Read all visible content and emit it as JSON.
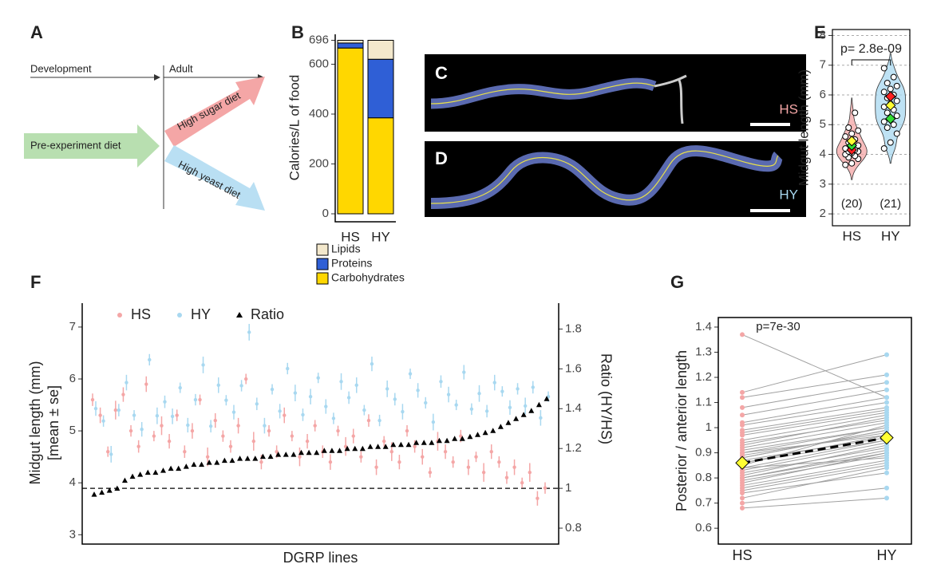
{
  "figure": {
    "panel_a": {
      "label": "A",
      "development": "Development",
      "adult": "Adult",
      "pre": "Pre-experiment diet",
      "sugar": "High sugar diet",
      "yeast": "High yeast diet"
    },
    "panel_c": {
      "label": "C",
      "diet": "HS"
    },
    "panel_d": {
      "label": "D",
      "diet": "HY"
    }
  },
  "chart_data": [
    {
      "type": "bar",
      "panel": "B",
      "ylabel": "Calories/L of food",
      "stacked": true,
      "categories": [
        "HS",
        "HY"
      ],
      "series": [
        {
          "name": "Carbohydrates",
          "color": "#ffd700",
          "values": [
            665,
            385
          ]
        },
        {
          "name": "Proteins",
          "color": "#2f5fd6",
          "values": [
            20,
            235
          ]
        },
        {
          "name": "Lipids",
          "color": "#f3e8cc",
          "values": [
            11,
            76
          ]
        }
      ],
      "ylim": [
        -32,
        720
      ],
      "yticks": [
        0,
        200,
        400,
        600,
        696
      ]
    },
    {
      "type": "violin",
      "panel": "E",
      "ylabel": "Midgut length (mm)",
      "annotation": "p= 2.8e-09",
      "categories": [
        "HS",
        "HY"
      ],
      "n_labels": [
        "(20)",
        "(21)"
      ],
      "groups": [
        {
          "color": "#f4a6a6",
          "values": [
            3.65,
            3.7,
            3.85,
            3.9,
            3.95,
            4.0,
            4.05,
            4.1,
            4.1,
            4.15,
            4.2,
            4.25,
            4.3,
            4.4,
            4.5,
            4.6,
            4.7,
            4.8,
            4.9,
            5.4
          ]
        },
        {
          "color": "#a8d8f0",
          "values": [
            4.2,
            4.4,
            4.7,
            4.9,
            5.0,
            5.1,
            5.2,
            5.3,
            5.4,
            5.5,
            5.6,
            5.7,
            5.8,
            5.9,
            6.0,
            6.1,
            6.2,
            6.3,
            6.4,
            6.6,
            6.9
          ]
        }
      ],
      "markers": [
        {
          "group": 0,
          "color": "#ff2020",
          "value": 4.15
        },
        {
          "group": 0,
          "color": "#33dd33",
          "value": 4.3
        },
        {
          "group": 0,
          "color": "#ffff33",
          "value": 4.45
        },
        {
          "group": 1,
          "color": "#33dd33",
          "value": 5.2
        },
        {
          "group": 1,
          "color": "#ffff33",
          "value": 5.65
        },
        {
          "group": 1,
          "color": "#ff2020",
          "value": 5.95
        }
      ],
      "ylim": [
        1.6,
        8.2
      ],
      "yticks": [
        2,
        3,
        4,
        5,
        6,
        7,
        8
      ],
      "grid": true
    },
    {
      "type": "errorbar",
      "panel": "F",
      "xlabel": "DGRP lines",
      "ylabel": "Midgut length (mm)",
      "ylabel2": "[mean ± se]",
      "y2label": "Ratio (HY/HS)",
      "series": [
        {
          "name": "HS",
          "color": "#f4a6a6",
          "values": [
            5.6,
            5.3,
            4.6,
            5.4,
            5.7,
            5.0,
            4.7,
            5.9,
            4.9,
            5.1,
            4.8,
            5.3,
            4.6,
            5.0,
            5.6,
            4.5,
            5.2,
            4.9,
            4.7,
            5.1,
            6.0,
            4.8,
            4.4,
            5.0,
            4.6,
            5.3,
            4.9,
            4.5,
            4.8,
            5.1,
            4.6,
            4.4,
            5.0,
            4.7,
            4.9,
            4.5,
            5.2,
            4.3,
            4.8,
            4.6,
            4.4,
            5.0,
            4.7,
            4.5,
            4.2,
            4.8,
            4.6,
            4.4,
            4.9,
            4.3,
            4.5,
            4.2,
            4.6,
            4.4,
            4.1,
            4.3,
            4.0,
            4.2,
            3.7,
            3.9
          ],
          "errors": [
            0.12,
            0.15,
            0.1,
            0.18,
            0.14,
            0.11,
            0.12,
            0.15,
            0.1,
            0.18,
            0.14,
            0.11,
            0.12,
            0.15,
            0.1,
            0.18,
            0.14,
            0.11,
            0.12,
            0.15,
            0.1,
            0.18,
            0.14,
            0.11,
            0.12,
            0.15,
            0.1,
            0.18,
            0.14,
            0.11,
            0.12,
            0.15,
            0.1,
            0.18,
            0.14,
            0.11,
            0.12,
            0.15,
            0.1,
            0.18,
            0.14,
            0.11,
            0.12,
            0.15,
            0.1,
            0.18,
            0.14,
            0.11,
            0.12,
            0.15,
            0.1,
            0.18,
            0.14,
            0.11,
            0.12,
            0.15,
            0.1,
            0.18,
            0.14,
            0.11
          ]
        },
        {
          "name": "HY",
          "color": "#a8d8f0",
          "values": [
            5.43,
            5.19,
            4.55,
            5.4,
            5.93,
            5.3,
            5.03,
            6.37,
            5.29,
            5.56,
            5.28,
            5.83,
            5.11,
            5.6,
            6.27,
            5.09,
            5.88,
            5.59,
            5.36,
            5.87,
            6.9,
            5.52,
            5.1,
            5.8,
            5.38,
            6.2,
            5.73,
            5.31,
            5.66,
            6.02,
            5.47,
            5.24,
            5.95,
            5.64,
            5.88,
            5.4,
            6.29,
            5.2,
            5.81,
            5.61,
            5.37,
            6.1,
            5.78,
            5.54,
            5.17,
            5.95,
            5.7,
            5.5,
            6.13,
            5.42,
            5.72,
            5.38,
            5.93,
            5.76,
            5.45,
            5.81,
            5.48,
            5.84,
            5.25,
            5.66
          ],
          "errors": [
            0.14,
            0.11,
            0.16,
            0.12,
            0.15,
            0.1,
            0.14,
            0.11,
            0.16,
            0.12,
            0.15,
            0.1,
            0.14,
            0.11,
            0.16,
            0.12,
            0.15,
            0.1,
            0.14,
            0.11,
            0.16,
            0.12,
            0.15,
            0.1,
            0.14,
            0.11,
            0.16,
            0.12,
            0.15,
            0.1,
            0.14,
            0.11,
            0.16,
            0.12,
            0.15,
            0.1,
            0.14,
            0.11,
            0.16,
            0.12,
            0.15,
            0.1,
            0.14,
            0.11,
            0.16,
            0.12,
            0.15,
            0.1,
            0.14,
            0.11,
            0.16,
            0.12,
            0.15,
            0.1,
            0.14,
            0.11,
            0.16,
            0.12,
            0.15,
            0.1
          ]
        },
        {
          "name": "Ratio",
          "color": "#000000",
          "axis": "y2",
          "values": [
            0.97,
            0.98,
            0.99,
            1.0,
            1.04,
            1.06,
            1.07,
            1.08,
            1.08,
            1.09,
            1.1,
            1.1,
            1.11,
            1.12,
            1.12,
            1.13,
            1.13,
            1.14,
            1.14,
            1.15,
            1.15,
            1.15,
            1.16,
            1.16,
            1.17,
            1.17,
            1.17,
            1.18,
            1.18,
            1.18,
            1.19,
            1.19,
            1.19,
            1.2,
            1.2,
            1.2,
            1.21,
            1.21,
            1.21,
            1.22,
            1.22,
            1.22,
            1.23,
            1.23,
            1.23,
            1.24,
            1.24,
            1.25,
            1.25,
            1.26,
            1.27,
            1.28,
            1.29,
            1.31,
            1.33,
            1.35,
            1.37,
            1.39,
            1.42,
            1.45
          ]
        }
      ],
      "reference_line": {
        "axis": "y2",
        "value": 1.0
      },
      "ylim": [
        2.82,
        7.46
      ],
      "yticks": [
        3,
        4,
        5,
        6,
        7
      ],
      "y2lim": [
        0.72,
        1.93
      ],
      "y2ticks": [
        0.8,
        1.0,
        1.2,
        1.4,
        1.6,
        1.8
      ]
    },
    {
      "type": "paired",
      "panel": "G",
      "ylabel": "Posterior / anterior length",
      "annotation": "p=7e-30",
      "categories": [
        "HS",
        "HY"
      ],
      "line_color": "#a0a0a0",
      "groups": [
        {
          "color": "#f4a6a6",
          "values": [
            0.86,
            0.92,
            0.78,
            1.01,
            0.84,
            0.95,
            0.72,
            0.88,
            1.05,
            0.81,
            0.9,
            0.76,
            0.99,
            0.85,
            1.12,
            0.8,
            0.93,
            0.87,
            0.7,
            1.37,
            0.83,
            0.97,
            0.79,
            0.91,
            1.14,
            0.74,
            0.89,
            0.82,
            1.02,
            0.68,
            0.86,
            0.94,
            0.77,
            1.08,
            0.84,
            0.9,
            0.75,
            0.98,
            0.88,
            0.8
          ]
        },
        {
          "color": "#a8d8f0",
          "values": [
            0.95,
            1.02,
            0.9,
            1.1,
            0.88,
            1.05,
            0.84,
            0.99,
            1.15,
            0.93,
            0.97,
            0.86,
            1.08,
            1.01,
            1.21,
            0.91,
            1.04,
            0.96,
            0.76,
            1.12,
            0.94,
            1.06,
            0.89,
            1.0,
            1.29,
            0.82,
            0.98,
            0.92,
            1.12,
            0.72,
            0.97,
            1.03,
            0.87,
            1.18,
            0.95,
            1.0,
            0.85,
            1.07,
            0.99,
            0.9
          ]
        }
      ],
      "mean_values": [
        0.86,
        0.96
      ],
      "mean_color": "#ffff33",
      "ylim": [
        0.537,
        1.438
      ],
      "yticks": [
        0.6,
        0.7,
        0.8,
        0.9,
        1.0,
        1.1,
        1.2,
        1.3,
        1.4
      ]
    }
  ]
}
